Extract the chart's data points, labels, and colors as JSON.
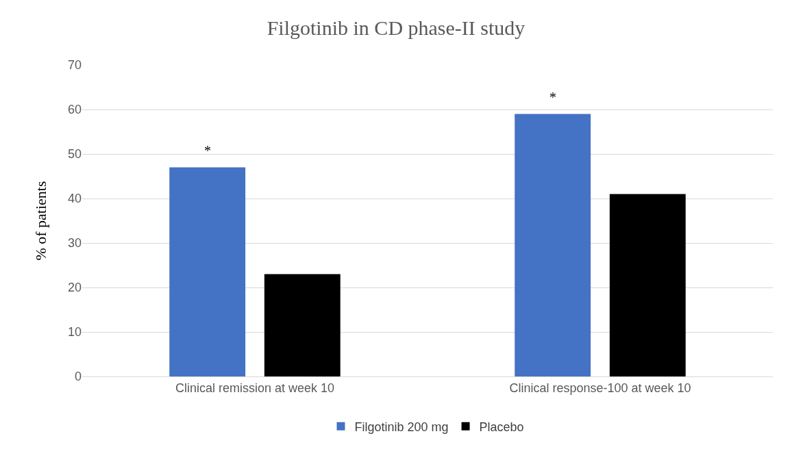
{
  "chart_data": {
    "type": "bar",
    "title": "Filgotinib in CD phase-II study",
    "ylabel": "% of patients",
    "categories": [
      "Clinical remission at week 10",
      "Clinical response-100 at week 10"
    ],
    "series": [
      {
        "name": "Filgotinib 200 mg",
        "color": "#4472c4",
        "values": [
          47,
          59
        ]
      },
      {
        "name": "Placebo",
        "color": "#000000",
        "values": [
          23,
          41
        ]
      }
    ],
    "ylim": [
      0,
      70
    ],
    "yticks": [
      0,
      10,
      20,
      30,
      40,
      50,
      60,
      70
    ],
    "grid": "y",
    "legend": "bottom",
    "annotations": [
      "*",
      "*"
    ]
  }
}
